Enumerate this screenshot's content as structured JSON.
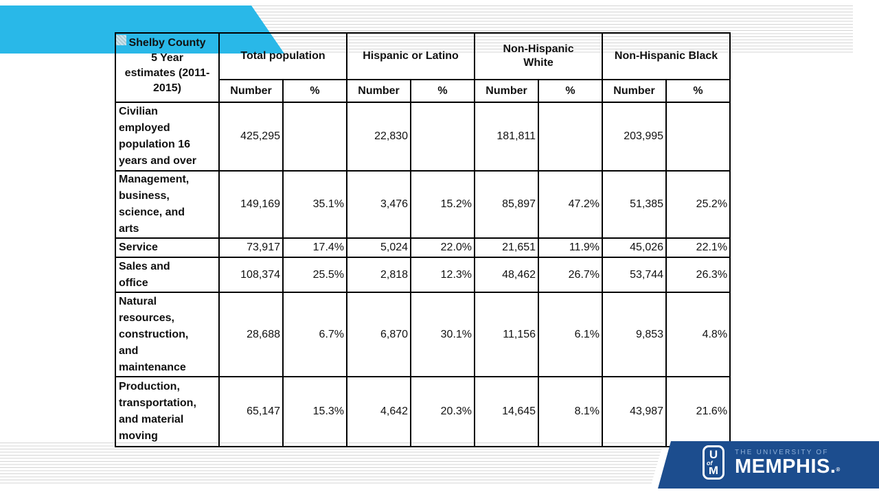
{
  "slide": {
    "colors": {
      "cyan_band": "#29b8e8",
      "navy": "#1c4d8e",
      "stripe": "#d4d4d4",
      "wordmark_top_blue": "#8fb0d8"
    },
    "logo": {
      "monogram_u": "U",
      "monogram_of": "of",
      "monogram_m": "M",
      "wordmark_line1": "THE UNIVERSITY OF",
      "wordmark_line2": "MEMPHIS.",
      "registered": "®"
    },
    "table": {
      "corner_header_lines": [
        "Shelby County",
        "5 Year",
        "estimates (2011-",
        "2015)"
      ],
      "group_headers": [
        [
          "Total population"
        ],
        [
          "Hispanic or Latino"
        ],
        [
          "Non-Hispanic",
          "White"
        ],
        [
          "Non-Hispanic Black"
        ]
      ],
      "sub_headers": [
        "Number",
        "%"
      ],
      "rows": [
        {
          "label_lines": [
            "Civilian",
            "employed",
            "population 16",
            "years and over"
          ],
          "cells": [
            "425,295",
            "",
            "22,830",
            "",
            "181,811",
            "",
            "203,995",
            ""
          ]
        },
        {
          "label_lines": [
            "Management,",
            "business,",
            "science, and",
            "arts"
          ],
          "cells": [
            "149,169",
            "35.1%",
            "3,476",
            "15.2%",
            "85,897",
            "47.2%",
            "51,385",
            "25.2%"
          ]
        },
        {
          "label_lines": [
            "Service"
          ],
          "cells": [
            "73,917",
            "17.4%",
            "5,024",
            "22.0%",
            "21,651",
            "11.9%",
            "45,026",
            "22.1%"
          ]
        },
        {
          "label_lines": [
            "Sales and",
            "office"
          ],
          "cells": [
            "108,374",
            "25.5%",
            "2,818",
            "12.3%",
            "48,462",
            "26.7%",
            "53,744",
            "26.3%"
          ]
        },
        {
          "label_lines": [
            "Natural",
            "resources,",
            "construction,",
            "and",
            "maintenance"
          ],
          "cells": [
            "28,688",
            "6.7%",
            "6,870",
            "30.1%",
            "11,156",
            "6.1%",
            "9,853",
            "4.8%"
          ]
        },
        {
          "label_lines": [
            "Production,",
            "transportation,",
            "and material",
            "moving"
          ],
          "cells": [
            "65,147",
            "15.3%",
            "4,642",
            "20.3%",
            "14,645",
            "8.1%",
            "43,987",
            "21.6%"
          ]
        }
      ]
    }
  },
  "chart_data": {
    "type": "table",
    "title": "Shelby County 5 Year estimates (2011-2015)",
    "column_groups": [
      "Total population",
      "Hispanic or Latino",
      "Non-Hispanic White",
      "Non-Hispanic Black"
    ],
    "columns": [
      "Total population Number",
      "Total population %",
      "Hispanic or Latino Number",
      "Hispanic or Latino %",
      "Non-Hispanic White Number",
      "Non-Hispanic White %",
      "Non-Hispanic Black Number",
      "Non-Hispanic Black %"
    ],
    "rows": [
      {
        "category": "Civilian employed population 16 years and over",
        "values": [
          "425,295",
          "",
          "22,830",
          "",
          "181,811",
          "",
          "203,995",
          ""
        ]
      },
      {
        "category": "Management, business, science, and arts",
        "values": [
          "149,169",
          "35.1%",
          "3,476",
          "15.2%",
          "85,897",
          "47.2%",
          "51,385",
          "25.2%"
        ]
      },
      {
        "category": "Service",
        "values": [
          "73,917",
          "17.4%",
          "5,024",
          "22.0%",
          "21,651",
          "11.9%",
          "45,026",
          "22.1%"
        ]
      },
      {
        "category": "Sales and office",
        "values": [
          "108,374",
          "25.5%",
          "2,818",
          "12.3%",
          "48,462",
          "26.7%",
          "53,744",
          "26.3%"
        ]
      },
      {
        "category": "Natural resources, construction, and maintenance",
        "values": [
          "28,688",
          "6.7%",
          "6,870",
          "30.1%",
          "11,156",
          "6.1%",
          "9,853",
          "4.8%"
        ]
      },
      {
        "category": "Production, transportation, and material moving",
        "values": [
          "65,147",
          "15.3%",
          "4,642",
          "20.3%",
          "14,645",
          "8.1%",
          "43,987",
          "21.6%"
        ]
      }
    ]
  }
}
